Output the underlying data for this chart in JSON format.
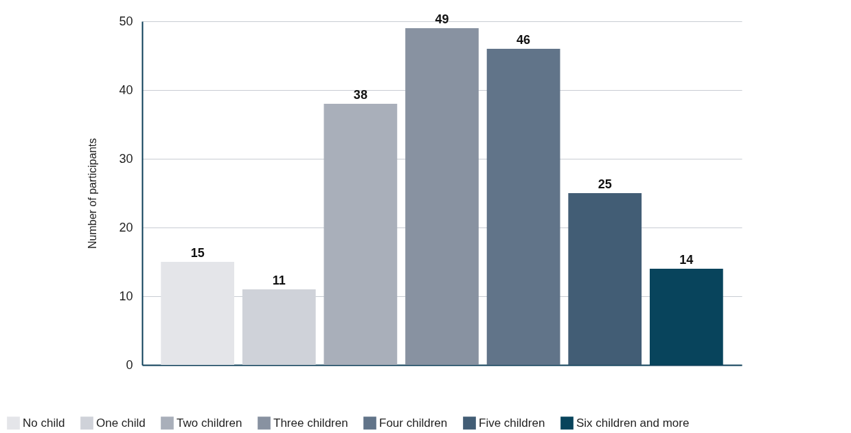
{
  "chart_data": {
    "type": "bar",
    "ylabel": "Number of participants",
    "categories": [
      null
    ],
    "series": [
      {
        "name": "No child",
        "color": "#e4e5e9",
        "values": [
          15
        ]
      },
      {
        "name": "One child",
        "color": "#cfd2d9",
        "values": [
          11
        ]
      },
      {
        "name": "Two children",
        "color": "#a9afba",
        "values": [
          38
        ]
      },
      {
        "name": "Three children",
        "color": "#8892a1",
        "values": [
          49
        ]
      },
      {
        "name": "Four children",
        "color": "#617489",
        "values": [
          46
        ]
      },
      {
        "name": "Five children",
        "color": "#425d75",
        "values": [
          25
        ]
      },
      {
        "name": "Six children and more",
        "color": "#08445c",
        "values": [
          14
        ]
      }
    ],
    "ylim": [
      0,
      50
    ],
    "yticks": [
      0,
      10,
      20,
      30,
      40,
      50
    ],
    "grid": "y",
    "legend": "bottom",
    "data_labels": true,
    "tick_labels": "y"
  }
}
